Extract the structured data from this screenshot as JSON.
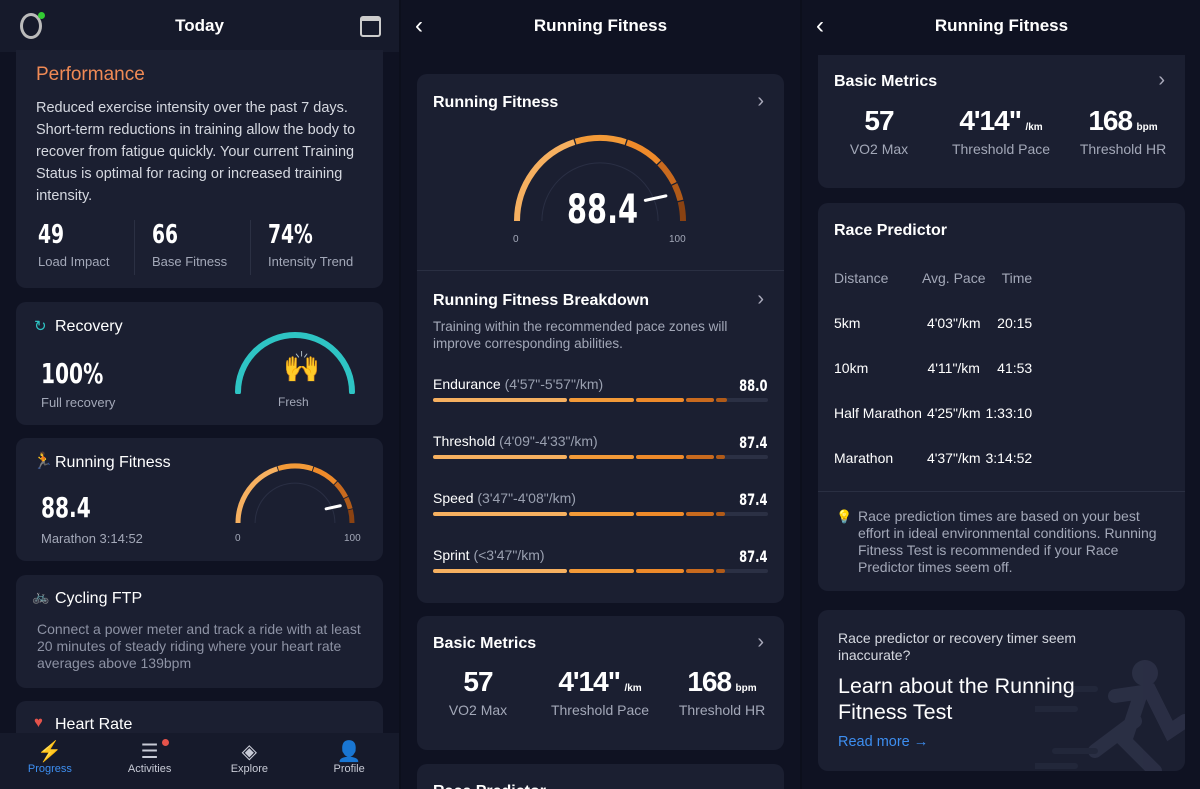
{
  "today": {
    "title": "Today",
    "watch_icon": "watch-icon",
    "calendar_icon": "calendar-icon",
    "performance": {
      "title": "Performance",
      "text": "Reduced exercise intensity over the past 7 days. Short-term reductions in training allow the body to recover from fatigue quickly. Your current Training Status is optimal for racing or increased training intensity.",
      "stats": [
        {
          "value": "49",
          "label": "Load Impact"
        },
        {
          "value": "66",
          "label": "Base Fitness"
        },
        {
          "value": "74%",
          "label": "Intensity Trend"
        }
      ]
    },
    "recovery": {
      "title": "Recovery",
      "value": "100%",
      "label": "Full recovery",
      "status": "Fresh",
      "level": 1.0,
      "color": "#2ec4c4"
    },
    "running_fitness": {
      "title": "Running Fitness",
      "value": "88.4",
      "score": 88.4,
      "sub": "Marathon 3:14:52",
      "min": "0",
      "max": "100"
    },
    "cycling": {
      "title": "Cycling FTP",
      "text": "Connect a power meter and track a ride with at least 20 minutes of steady riding where your heart rate averages above 139bpm"
    },
    "heart_rate": {
      "title": "Heart Rate"
    },
    "nav": [
      {
        "label": "Progress",
        "active": true
      },
      {
        "label": "Activities"
      },
      {
        "label": "Explore"
      },
      {
        "label": "Profile"
      }
    ]
  },
  "fitness": {
    "title": "Running Fitness",
    "gauge": {
      "title": "Running Fitness",
      "value": "88.4",
      "score": 88.4,
      "min": "0",
      "max": "100"
    },
    "breakdown": {
      "title": "Running Fitness Breakdown",
      "text": "Training within the recommended pace zones will improve corresponding abilities.",
      "rows": [
        {
          "name": "Endurance",
          "range": "(4'57\"-5'57\"/km)",
          "value": "88.0",
          "score": 88.0
        },
        {
          "name": "Threshold",
          "range": "(4'09\"-4'33\"/km)",
          "value": "87.4",
          "score": 87.4
        },
        {
          "name": "Speed",
          "range": "(3'47\"-4'08\"/km)",
          "value": "87.4",
          "score": 87.4
        },
        {
          "name": "Sprint",
          "range": "(<3'47\"/km)",
          "value": "87.4",
          "score": 87.4
        }
      ]
    },
    "basic": {
      "title": "Basic Metrics",
      "metrics": [
        {
          "value": "57",
          "unit": "",
          "label": "VO2 Max"
        },
        {
          "value": "4'14\"",
          "unit": "/km",
          "label": "Threshold Pace"
        },
        {
          "value": "168",
          "unit": "bpm",
          "label": "Threshold HR"
        }
      ]
    },
    "race_title": "Race Predictor",
    "race": {
      "headers": [
        "Distance",
        "Avg. Pace",
        "Time"
      ],
      "rows": [
        [
          "5km",
          "4'03\"/km",
          "20:15"
        ],
        [
          "10km",
          "4'11\"/km",
          "41:53"
        ],
        [
          "Half Marathon",
          "4'25\"/km",
          "1:33:10"
        ],
        [
          "Marathon",
          "4'37\"/km",
          "3:14:52"
        ]
      ],
      "note": "Race prediction times are based on your best effort in ideal environmental conditions. Running Fitness Test is recommended if your Race Predictor times seem off."
    },
    "promo": {
      "question": "Race predictor or recovery timer seem inaccurate?",
      "headline": "Learn about the Running Fitness Test",
      "link": "Read more →"
    }
  },
  "colors": {
    "bg": "#0f1222",
    "card": "#1b1f31",
    "accent": "#f08a3c",
    "link": "#3d8ef0"
  }
}
